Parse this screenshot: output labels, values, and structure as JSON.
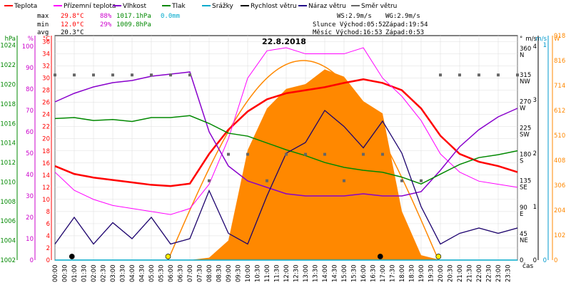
{
  "legend": [
    {
      "label": "Teplota",
      "color": "#ff0000"
    },
    {
      "label": "Přízemní teplota",
      "color": "#ff00ff"
    },
    {
      "label": "Vlhkost",
      "color": "#8800cc"
    },
    {
      "label": "Tlak",
      "color": "#008800"
    },
    {
      "label": "Srážky",
      "color": "#00aacc"
    },
    {
      "label": "Rychlost větru",
      "color": "#000000"
    },
    {
      "label": "Náraz větru",
      "color": "#220088"
    },
    {
      "label": "Směr větru",
      "color": "#666666"
    }
  ],
  "stats": {
    "max_label": "max",
    "max_temp": "29.8°C",
    "max_hum": "88%",
    "max_press": "1017.1hPa",
    "max_rain": "0.0mm",
    "min_label": "min",
    "min_temp": "12.0°C",
    "min_hum": "29%",
    "min_press": "1009.8hPa",
    "avg_label": "avg",
    "avg_temp": "20.3°C",
    "ws": "WS:2.9m/s",
    "wg": "WG:2.9m/s",
    "sun": "Slunce Východ:05:52",
    "sunset": "Západ:19:54",
    "moon": "Měsíc  Východ:16:53",
    "moonset": "Západ:0:53"
  },
  "date": "22.8.2018",
  "time_label": "čas",
  "axes": {
    "hpa": {
      "title": "hPa",
      "color": "#008800",
      "ticks": [
        "1024",
        "1022",
        "1020",
        "1018",
        "1016",
        "1014",
        "1012",
        "1010",
        "1008",
        "1006",
        "1004",
        "1002"
      ]
    },
    "pct": {
      "title": "%",
      "color": "#cc00cc",
      "ticks": [
        "100",
        "90",
        "80",
        "70",
        "60",
        "50",
        "40",
        "30",
        "20",
        "10",
        "0"
      ]
    },
    "degc": {
      "title": "°C",
      "color": "#ff0000",
      "ticks": [
        "36",
        "34",
        "32",
        "30",
        "28",
        "26",
        "24",
        "22",
        "20",
        "18",
        "16",
        "14",
        "12",
        "10",
        "8",
        "6",
        "4",
        "2",
        "0"
      ]
    },
    "dir": {
      "title": "°",
      "color": "#000000",
      "ticks": [
        "360",
        "315",
        "270",
        "225",
        "180",
        "135",
        "90",
        "45",
        "0"
      ],
      "labels": [
        "N",
        "NW",
        "W",
        "SW",
        "S",
        "SE",
        "E",
        "NE"
      ]
    },
    "ms": {
      "title": "m/s",
      "color": "#000000",
      "ticks": [
        "4",
        "3",
        "2",
        "1",
        "0"
      ]
    },
    "ms2": {
      "title": "m/s",
      "color": "#0099cc",
      "ticks": [
        "1",
        "0"
      ]
    },
    "w": {
      "title": "W",
      "color": "#ff8800",
      "ticks": [
        "918",
        "816",
        "714",
        "612",
        "510",
        "408",
        "306",
        "204",
        "102",
        "0"
      ]
    }
  },
  "x_ticks": [
    "00:00",
    "00:30",
    "01:00",
    "01:30",
    "02:00",
    "02:30",
    "03:00",
    "03:30",
    "04:00",
    "04:30",
    "05:00",
    "05:30",
    "06:00",
    "06:30",
    "07:00",
    "07:30",
    "08:00",
    "08:30",
    "09:00",
    "09:30",
    "10:00",
    "10:30",
    "11:00",
    "11:30",
    "12:00",
    "12:30",
    "13:00",
    "13:30",
    "14:00",
    "14:30",
    "15:00",
    "15:30",
    "16:00",
    "16:30",
    "17:00",
    "17:30",
    "18:00",
    "18:30",
    "19:00",
    "19:30",
    "20:00",
    "20:30",
    "21:00",
    "21:30",
    "22:00",
    "22:30",
    "23:00",
    "23:30"
  ],
  "chart_data": {
    "type": "line",
    "title": "22.8.2018",
    "xlabel": "čas",
    "x": [
      0,
      1,
      2,
      3,
      4,
      5,
      6,
      7,
      8,
      9,
      10,
      11,
      12,
      13,
      14,
      15,
      16,
      17,
      18,
      19,
      20,
      21,
      22,
      23,
      24
    ],
    "series": [
      {
        "name": "Teplota",
        "unit": "°C",
        "values": [
          15.5,
          14.2,
          13.6,
          13.2,
          12.8,
          12.4,
          12.2,
          12.6,
          17.5,
          21.5,
          24.5,
          26.5,
          27.5,
          28.0,
          28.5,
          29.2,
          29.8,
          29.2,
          28.0,
          25.0,
          20.5,
          17.5,
          16.2,
          15.5,
          14.5
        ]
      },
      {
        "name": "Přízemní teplota",
        "unit": "°C",
        "values": [
          14.5,
          11.5,
          10.0,
          9.0,
          8.5,
          8.0,
          7.5,
          8.5,
          12.5,
          20.0,
          30.0,
          34.5,
          35.0,
          34.0,
          34.0,
          34.0,
          35.0,
          30.0,
          27.0,
          23.0,
          17.5,
          14.5,
          13.0,
          12.5,
          12.0
        ]
      },
      {
        "name": "Vlhkost",
        "unit": "%",
        "values": [
          74,
          78,
          81,
          83,
          84,
          86,
          87,
          88,
          60,
          44,
          37,
          34,
          31,
          30,
          30,
          30,
          31,
          30,
          30,
          32,
          42,
          53,
          61,
          67,
          71
        ]
      },
      {
        "name": "Tlak",
        "unit": "hPa",
        "values": [
          1016.5,
          1016.6,
          1016.3,
          1016.4,
          1016.2,
          1016.6,
          1016.6,
          1016.8,
          1016.0,
          1015.0,
          1014.7,
          1014.0,
          1013.3,
          1012.7,
          1012.0,
          1011.5,
          1011.2,
          1011.0,
          1010.5,
          1009.8,
          1010.8,
          1011.8,
          1012.5,
          1012.8,
          1013.2
        ]
      },
      {
        "name": "Rychlost větru",
        "unit": "m/s",
        "values": [
          0.3,
          0.8,
          0.3,
          0.7,
          0.4,
          0.8,
          0.3,
          0.4,
          1.3,
          0.5,
          0.3,
          1.2,
          2.0,
          2.2,
          2.8,
          2.5,
          2.1,
          2.6,
          2.0,
          1.0,
          0.3,
          0.5,
          0.6,
          0.5,
          0.6
        ]
      },
      {
        "name": "Náraz větru",
        "unit": "m/s",
        "values": [
          0.3,
          0.8,
          0.3,
          0.7,
          0.4,
          0.8,
          0.3,
          0.4,
          1.3,
          0.5,
          0.3,
          1.2,
          2.0,
          2.2,
          2.8,
          2.5,
          2.1,
          2.6,
          2.0,
          1.0,
          0.3,
          0.5,
          0.6,
          0.5,
          0.6
        ]
      },
      {
        "name": "Směr větru",
        "unit": "°",
        "values": [
          315,
          315,
          315,
          315,
          315,
          315,
          315,
          315,
          135,
          180,
          180,
          135,
          180,
          180,
          180,
          135,
          180,
          180,
          135,
          135,
          315,
          315,
          315,
          315,
          315
        ]
      },
      {
        "name": "Srážky",
        "unit": "mm",
        "values": [
          0,
          0,
          0,
          0,
          0,
          0,
          0,
          0,
          0,
          0,
          0,
          0,
          0,
          0,
          0,
          0,
          0,
          0,
          0,
          0,
          0,
          0,
          0,
          0,
          0
        ]
      }
    ],
    "solar": {
      "unit": "W",
      "peak": 816,
      "sunrise_h": 5.87,
      "sunset_h": 19.9,
      "measured": [
        0,
        0,
        0,
        0,
        0,
        0,
        0,
        0,
        10,
        80,
        450,
        620,
        700,
        720,
        780,
        750,
        650,
        600,
        200,
        20,
        0,
        0,
        0,
        0,
        0
      ]
    },
    "solar_theoretical_peak": 816,
    "axes": {
      "hpa": [
        1002,
        1025
      ],
      "percent": [
        0,
        105
      ],
      "celsius": [
        0,
        37
      ],
      "direction": [
        0,
        382
      ],
      "wind_ms": [
        0,
        4.2
      ],
      "solar_w": [
        0,
        918
      ]
    },
    "grid": true,
    "legend_position": "top"
  }
}
